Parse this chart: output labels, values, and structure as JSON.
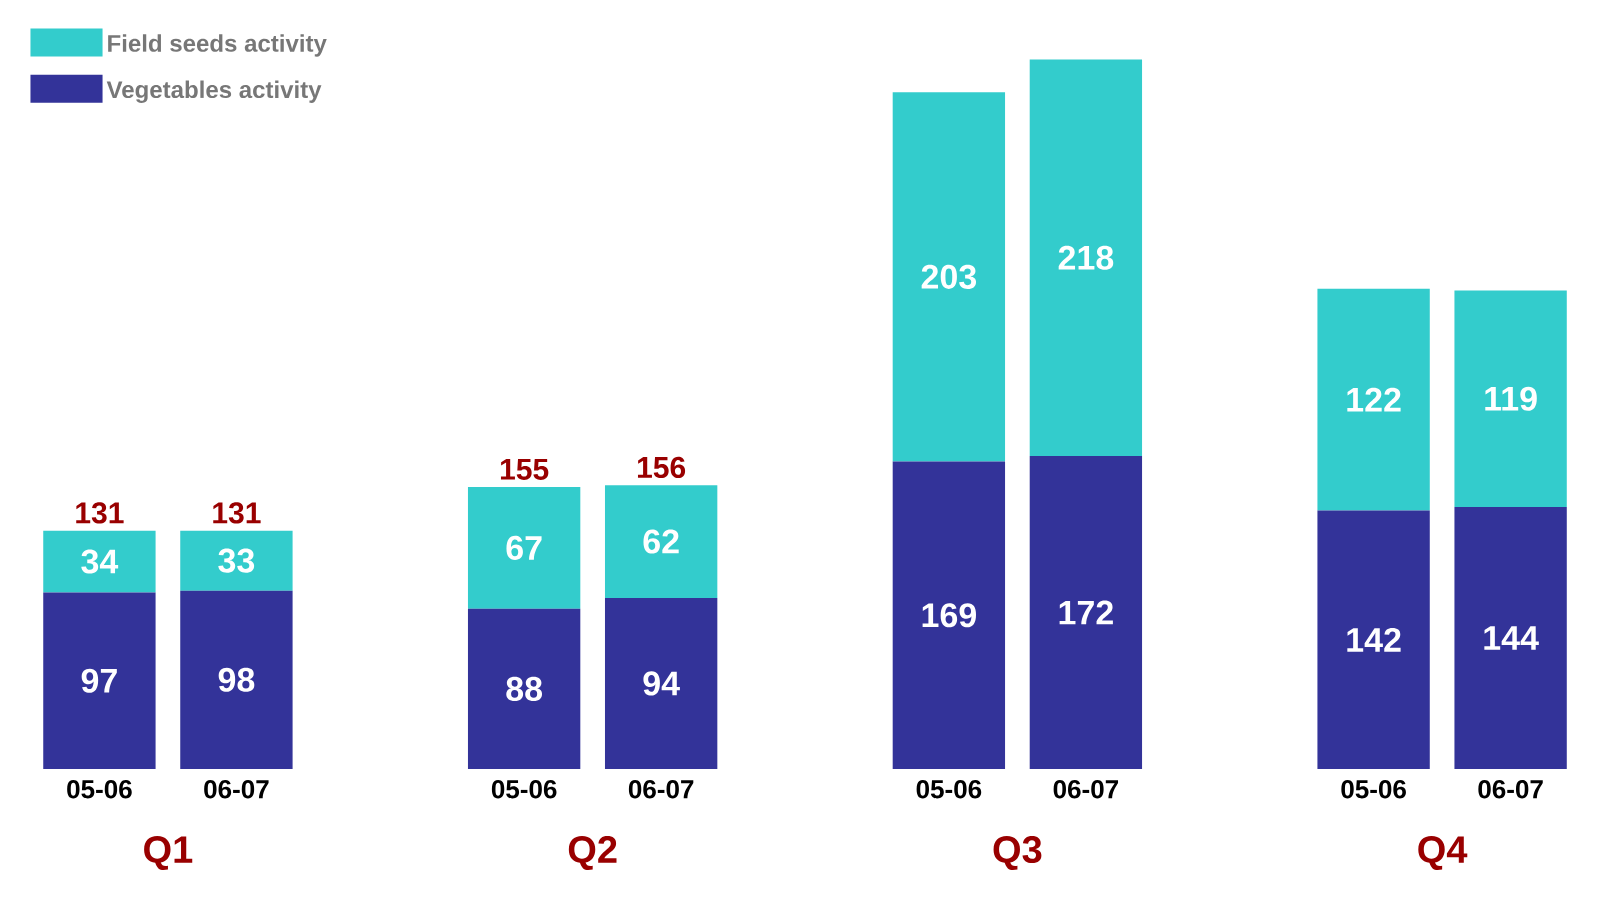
{
  "chart_data": {
    "type": "bar",
    "stacked": true,
    "categories": [
      "05-06",
      "06-07",
      "05-06",
      "06-07",
      "05-06",
      "06-07",
      "05-06",
      "06-07"
    ],
    "series": [
      {
        "name": "Vegetables activity",
        "color": "#333399",
        "values": [
          97,
          98,
          88,
          94,
          169,
          172,
          142,
          144
        ]
      },
      {
        "name": "Field seeds activity",
        "color": "#33cccc",
        "values": [
          34,
          33,
          67,
          62,
          203,
          218,
          122,
          119
        ]
      }
    ],
    "totals": [
      "131",
      "131",
      "155",
      "156",
      null,
      null,
      null,
      null
    ],
    "annotations": [
      "Q1",
      "Q2",
      "Q3",
      "Q4"
    ],
    "data_labels": true,
    "legend": "top left"
  }
}
